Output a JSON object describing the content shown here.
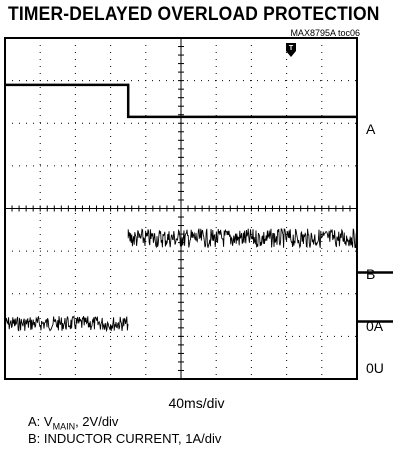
{
  "header": {
    "title": "TIMER-DELAYED OVERLOAD PROTECTION",
    "part_number": "MAX8795A toc06"
  },
  "chart_data": {
    "type": "line",
    "title": "TIMER-DELAYED OVERLOAD PROTECTION",
    "xlabel": "40ms/div",
    "grid": true,
    "divisions": {
      "x": 10,
      "y": 8
    },
    "trigger_marker": "T",
    "series": [
      {
        "name": "A",
        "description_label": "A: VMAIN, 2V/div",
        "x_ms": [
          0,
          140,
          140,
          400
        ],
        "y_div": [
          6.9,
          6.9,
          6.15,
          6.15
        ]
      },
      {
        "name": "B",
        "description_label": "B: INDUCTOR CURRENT, 1A/div",
        "segments": [
          {
            "x_ms": [
              0,
              140
            ],
            "level_div": 1.3,
            "noise_div": 0.35,
            "style": "noisy"
          },
          {
            "x_ms": [
              140,
              400
            ],
            "level_div": 3.3,
            "noise_div": 0.45,
            "style": "noisy"
          },
          {
            "x_ms": [
              400,
              560
            ],
            "level_div": 2.5,
            "style": "clean"
          },
          {
            "x_ms": [
              400,
              560
            ],
            "level_div": 1.35,
            "style": "clean",
            "ref": "0A"
          }
        ]
      }
    ],
    "right_labels": [
      "A",
      "B",
      "0A",
      "0U"
    ]
  },
  "axis": {
    "x_scale": "40ms/div"
  },
  "legend": {
    "a_prefix": "A: V",
    "a_sub": "MAIN",
    "a_suffix": ", 2V/div",
    "b": "B: INDUCTOR CURRENT, 1A/div"
  },
  "colors": {
    "trace": "#000000",
    "grid": "#000000",
    "background": "#ffffff"
  }
}
